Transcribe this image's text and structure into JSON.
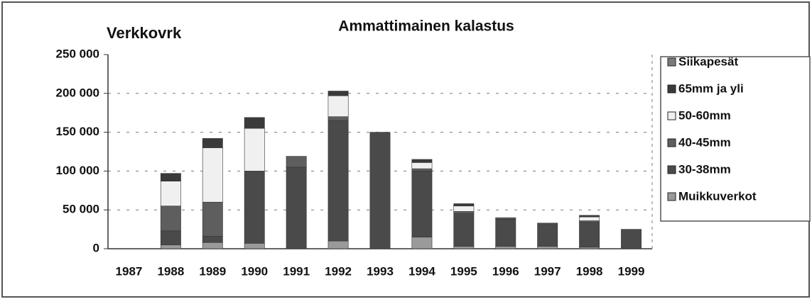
{
  "chart_data": {
    "type": "stacked_bar",
    "title": "Ammattimainen kalastus",
    "y_label": "Verkkovrk",
    "categories": [
      "1987",
      "1988",
      "1989",
      "1990",
      "1991",
      "1992",
      "1993",
      "1994",
      "1995",
      "1996",
      "1997",
      "1998",
      "1999"
    ],
    "series": [
      {
        "name": "Muikkuverkot",
        "color": "#9a9a9a",
        "values": [
          0,
          5000,
          8000,
          7000,
          0,
          10000,
          0,
          15000,
          3000,
          3000,
          3000,
          2000,
          0
        ]
      },
      {
        "name": "30-38mm",
        "color": "#4a4a4a",
        "values": [
          0,
          18000,
          8000,
          93000,
          105000,
          155000,
          150000,
          85000,
          42000,
          35000,
          30000,
          32000,
          25000
        ]
      },
      {
        "name": "40-45mm",
        "color": "#5e5e5e",
        "values": [
          0,
          32000,
          44000,
          0,
          14000,
          5000,
          0,
          3000,
          3000,
          2000,
          0,
          2000,
          0
        ]
      },
      {
        "name": "50-60mm",
        "color": "#f0f0f0",
        "values": [
          0,
          32000,
          70000,
          55000,
          0,
          27000,
          0,
          8000,
          7000,
          0,
          0,
          5000,
          0
        ]
      },
      {
        "name": "65mm ja yli",
        "color": "#3a3a3a",
        "values": [
          0,
          10000,
          12000,
          14000,
          0,
          6000,
          0,
          4000,
          3000,
          0,
          0,
          2000,
          0
        ]
      },
      {
        "name": "Siikapesät",
        "color": "#7a7a7a",
        "values": [
          0,
          0,
          0,
          0,
          0,
          0,
          0,
          0,
          0,
          0,
          0,
          0,
          0
        ]
      }
    ],
    "ylim": [
      0,
      250000
    ],
    "yticks": [
      0,
      {
        "value": 50000,
        "label": "50 000"
      },
      {
        "value": 100000,
        "label": "100 000"
      },
      {
        "value": 150000,
        "label": "150 000"
      },
      {
        "value": 200000,
        "label": "200 000"
      },
      {
        "value": 250000,
        "label": "250 000"
      }
    ],
    "grid": true,
    "legend": "right"
  }
}
